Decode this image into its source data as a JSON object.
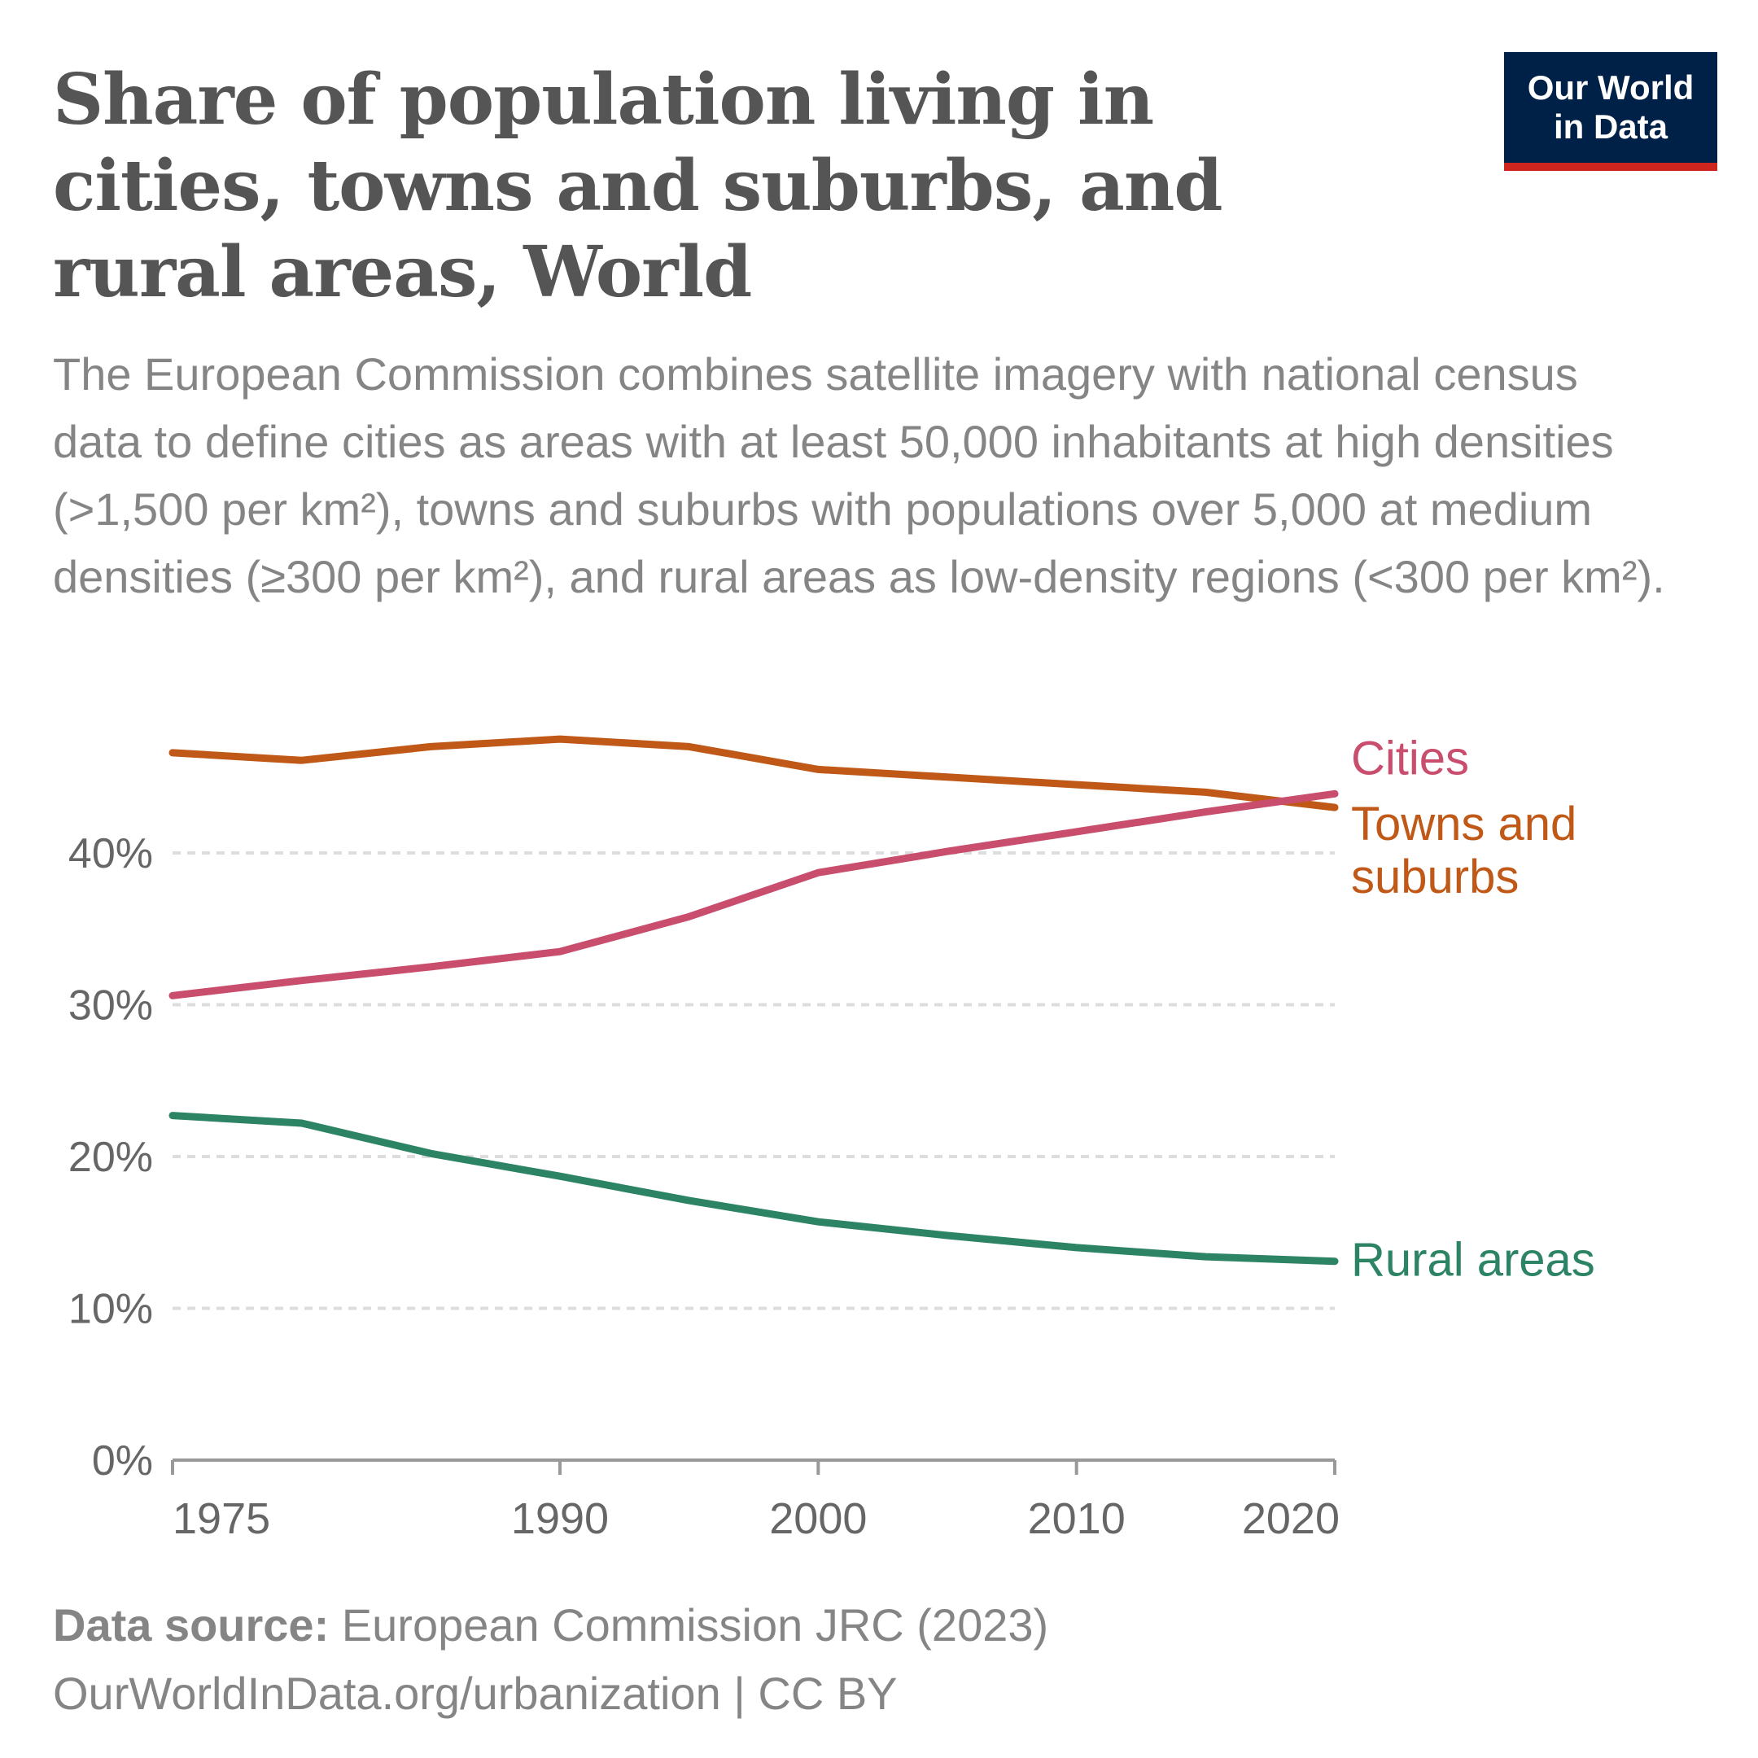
{
  "header": {
    "title": "Share of population living in cities, towns and suburbs, and rural areas, World",
    "subtitle": "The European Commission combines satellite imagery with national census data to define cities as areas with at least 50,000 inhabitants at high densities (>1,500 per km²), towns and suburbs with populations over 5,000 at medium densities (≥300 per km²), and rural areas as low-density regions (<300 per km²)."
  },
  "logo": {
    "line1": "Our World",
    "line2": "in Data",
    "background": "#002147",
    "accent": "#ce261e"
  },
  "chart_data": {
    "type": "line",
    "x": [
      1975,
      1980,
      1985,
      1990,
      1995,
      2000,
      2005,
      2010,
      2015,
      2020
    ],
    "xlim": [
      1975,
      2020
    ],
    "x_ticks": [
      1975,
      1990,
      2000,
      2010,
      2020
    ],
    "y_ticks": [
      "0%",
      "10%",
      "20%",
      "30%",
      "40%"
    ],
    "y_tick_values": [
      0,
      10,
      20,
      30,
      40
    ],
    "ylim": [
      0,
      48
    ],
    "grid": "horizontal dashed",
    "legend": "right-end line labels",
    "series": [
      {
        "name": "Towns and suburbs",
        "label_lines": [
          "Towns and",
          "suburbs"
        ],
        "color": "#c05917",
        "values": [
          46.6,
          46.1,
          47.0,
          47.5,
          47.0,
          45.5,
          45.0,
          44.5,
          44.0,
          43.0
        ]
      },
      {
        "name": "Cities",
        "label_lines": [
          "Cities"
        ],
        "color": "#c94d6d",
        "values": [
          30.6,
          31.6,
          32.5,
          33.5,
          35.8,
          38.7,
          40.1,
          41.4,
          42.7,
          43.9
        ]
      },
      {
        "name": "Rural areas",
        "label_lines": [
          "Rural areas"
        ],
        "color": "#2c8465",
        "values": [
          22.7,
          22.2,
          20.2,
          18.7,
          17.1,
          15.7,
          14.8,
          14.0,
          13.4,
          13.1
        ]
      }
    ]
  },
  "footer": {
    "source_label": "Data source:",
    "source_text": " European Commission JRC (2023)",
    "url_line": "OurWorldInData.org/urbanization | CC BY"
  }
}
